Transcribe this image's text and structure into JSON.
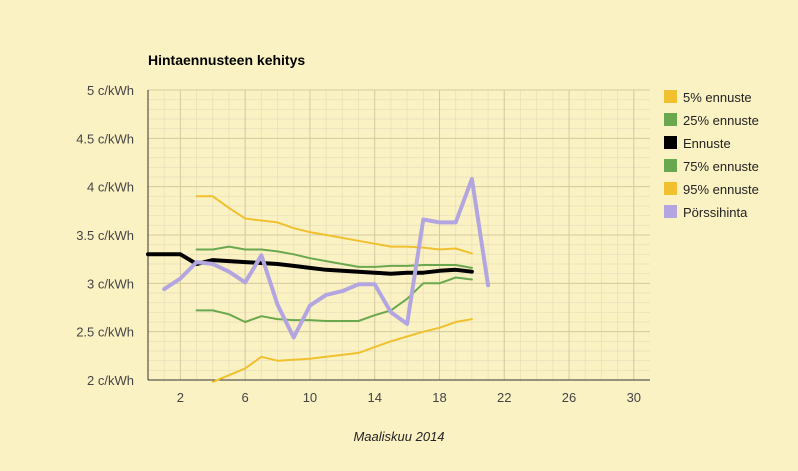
{
  "chart_data": {
    "type": "line",
    "title": "Hintaennusteen kehitys",
    "xlabel": "Maaliskuu 2014",
    "ylabel": "",
    "xlim": [
      0,
      31
    ],
    "ylim": [
      2,
      5
    ],
    "x_ticks": [
      2,
      6,
      10,
      14,
      18,
      22,
      26,
      30
    ],
    "y_ticks": [
      {
        "value": 2,
        "label": "2 c/kWh"
      },
      {
        "value": 2.5,
        "label": "2.5 c/kWh"
      },
      {
        "value": 3,
        "label": "3 c/kWh"
      },
      {
        "value": 3.5,
        "label": "3.5 c/kWh"
      },
      {
        "value": 4,
        "label": "4 c/kWh"
      },
      {
        "value": 4.5,
        "label": "4.5 c/kWh"
      },
      {
        "value": 5,
        "label": "5 c/kWh"
      }
    ],
    "grid": true,
    "legend_position": "right",
    "series": [
      {
        "name": "5% ennuste",
        "color": "#f0c02f",
        "width": 2,
        "x": [
          4,
          5,
          6,
          7,
          8,
          9,
          10,
          11,
          12,
          13,
          14,
          15,
          16,
          17,
          18,
          19,
          20
        ],
        "y": [
          1.98,
          2.05,
          2.12,
          2.24,
          2.2,
          2.21,
          2.22,
          2.24,
          2.26,
          2.28,
          2.34,
          2.4,
          2.45,
          2.5,
          2.54,
          2.6,
          2.63
        ]
      },
      {
        "name": "25% ennuste",
        "color": "#6aa84f",
        "width": 2,
        "x": [
          3,
          4,
          5,
          6,
          7,
          8,
          9,
          10,
          11,
          12,
          13,
          14,
          15,
          16,
          17,
          18,
          19,
          20
        ],
        "y": [
          2.72,
          2.72,
          2.68,
          2.6,
          2.66,
          2.63,
          2.62,
          2.62,
          2.61,
          2.61,
          2.61,
          2.67,
          2.72,
          2.84,
          3.0,
          3.0,
          3.06,
          3.04
        ]
      },
      {
        "name": "Ennuste",
        "color": "#000000",
        "width": 4,
        "x": [
          0,
          1,
          2,
          3,
          4,
          5,
          6,
          7,
          8,
          9,
          10,
          11,
          12,
          13,
          14,
          15,
          16,
          17,
          18,
          19,
          20
        ],
        "y": [
          3.3,
          3.3,
          3.3,
          3.2,
          3.24,
          3.23,
          3.22,
          3.21,
          3.2,
          3.18,
          3.16,
          3.14,
          3.13,
          3.12,
          3.11,
          3.1,
          3.11,
          3.11,
          3.13,
          3.14,
          3.12
        ]
      },
      {
        "name": "75% ennuste",
        "color": "#6aa84f",
        "width": 2,
        "x": [
          3,
          4,
          5,
          6,
          7,
          8,
          9,
          10,
          11,
          12,
          13,
          14,
          15,
          16,
          17,
          18,
          19,
          20
        ],
        "y": [
          3.35,
          3.35,
          3.38,
          3.35,
          3.35,
          3.33,
          3.3,
          3.26,
          3.23,
          3.2,
          3.17,
          3.17,
          3.18,
          3.18,
          3.19,
          3.19,
          3.19,
          3.16
        ]
      },
      {
        "name": "95% ennuste",
        "color": "#f0c02f",
        "width": 2,
        "x": [
          3,
          4,
          5,
          6,
          7,
          8,
          9,
          10,
          11,
          12,
          13,
          14,
          15,
          16,
          17,
          18,
          19,
          20
        ],
        "y": [
          3.9,
          3.9,
          3.78,
          3.67,
          3.65,
          3.63,
          3.57,
          3.53,
          3.5,
          3.47,
          3.44,
          3.41,
          3.38,
          3.38,
          3.37,
          3.35,
          3.36,
          3.31
        ]
      },
      {
        "name": "Pörssihinta",
        "color": "#b3a6e0",
        "width": 4,
        "x": [
          1,
          2,
          3,
          4,
          5,
          6,
          7,
          8,
          9,
          10,
          11,
          12,
          13,
          14,
          15,
          16,
          17,
          18,
          19,
          20,
          21
        ],
        "y": [
          2.94,
          3.05,
          3.22,
          3.2,
          3.12,
          3.01,
          3.29,
          2.78,
          2.44,
          2.77,
          2.88,
          2.92,
          2.99,
          2.99,
          2.7,
          2.58,
          3.66,
          3.63,
          3.63,
          4.08,
          2.98
        ]
      }
    ]
  }
}
